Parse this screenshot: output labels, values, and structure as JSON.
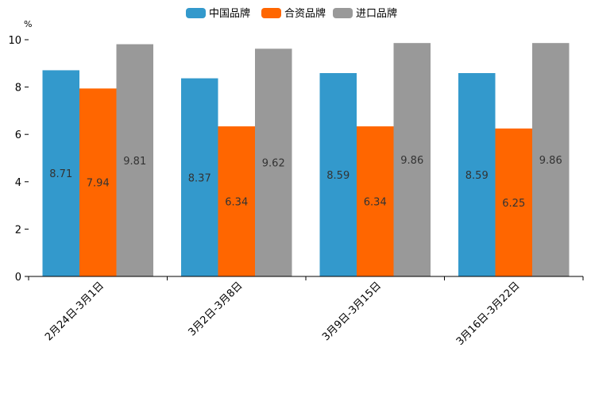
{
  "chart_data": {
    "type": "bar",
    "title": "",
    "xlabel": "",
    "ylabel": "%",
    "ylim": [
      0,
      10
    ],
    "yticks": [
      0,
      2,
      4,
      6,
      8,
      10
    ],
    "grid": false,
    "legend_position": "top-center",
    "categories": [
      "2月24日-3月1日",
      "3月2日-3月8日",
      "3月9日-3月15日",
      "3月16日-3月22日"
    ],
    "series": [
      {
        "name": "中国品牌",
        "color": "#3399CC",
        "values": [
          8.71,
          8.37,
          8.59,
          8.59
        ],
        "labels": [
          "8.71",
          "8.37",
          "8.59",
          "8.59"
        ]
      },
      {
        "name": "合资品牌",
        "color": "#FF6600",
        "values": [
          7.94,
          6.34,
          6.34,
          6.25
        ],
        "labels": [
          "7.94",
          "6.34",
          "6.34",
          "6.25"
        ]
      },
      {
        "name": "进口品牌",
        "color": "#999999",
        "values": [
          9.81,
          9.62,
          9.86,
          9.86
        ],
        "labels": [
          "9.81",
          "9.62",
          "9.86",
          "9.86"
        ]
      }
    ]
  }
}
